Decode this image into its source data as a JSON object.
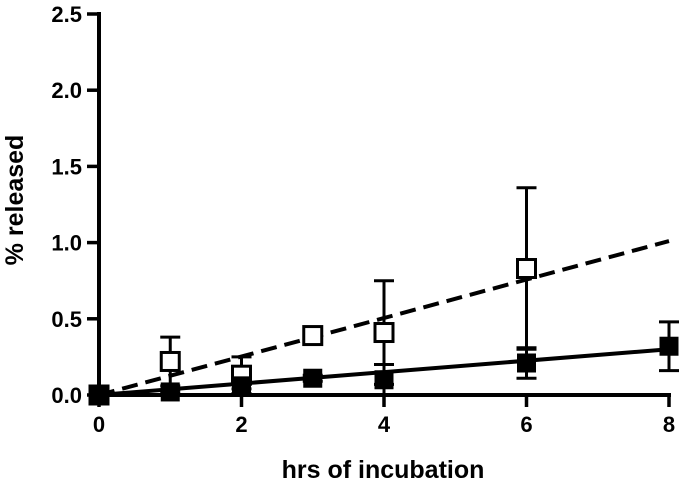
{
  "chart_data": {
    "type": "scatter",
    "title": "",
    "xlabel": "hrs of incubation",
    "ylabel": "% released",
    "xlim": [
      0,
      8
    ],
    "ylim": [
      0,
      2.5
    ],
    "x_ticks": [
      "0",
      "2",
      "4",
      "6",
      "8"
    ],
    "y_ticks": [
      "0.0",
      "0.5",
      "1.0",
      "1.5",
      "2.0",
      "2.5"
    ],
    "grid": false,
    "legend": "none",
    "series": [
      {
        "marker": "open-square",
        "color": "#000000",
        "points": [
          {
            "x": 0,
            "y": 0.0,
            "err": 0.0
          },
          {
            "x": 1,
            "y": 0.22,
            "err": 0.16
          },
          {
            "x": 2,
            "y": 0.13,
            "err": 0.12
          },
          {
            "x": 3,
            "y": 0.39,
            "err": 0.03
          },
          {
            "x": 4,
            "y": 0.41,
            "err": 0.34
          },
          {
            "x": 6,
            "y": 0.83,
            "err": 0.53
          }
        ],
        "fit": {
          "style": "dashed",
          "x": [
            0,
            8
          ],
          "y": [
            0.0,
            1.01
          ]
        }
      },
      {
        "marker": "filled-square",
        "color": "#000000",
        "points": [
          {
            "x": 0,
            "y": 0.0,
            "err": 0.0
          },
          {
            "x": 1,
            "y": 0.02,
            "err": 0.01
          },
          {
            "x": 2,
            "y": 0.06,
            "err": 0.02
          },
          {
            "x": 3,
            "y": 0.11,
            "err": 0.02
          },
          {
            "x": 4,
            "y": 0.1,
            "err": 0.1
          },
          {
            "x": 6,
            "y": 0.21,
            "err": 0.1
          },
          {
            "x": 8,
            "y": 0.32,
            "err": 0.16
          }
        ],
        "fit": {
          "style": "solid",
          "x": [
            0,
            8
          ],
          "y": [
            0.0,
            0.3
          ]
        }
      }
    ]
  }
}
